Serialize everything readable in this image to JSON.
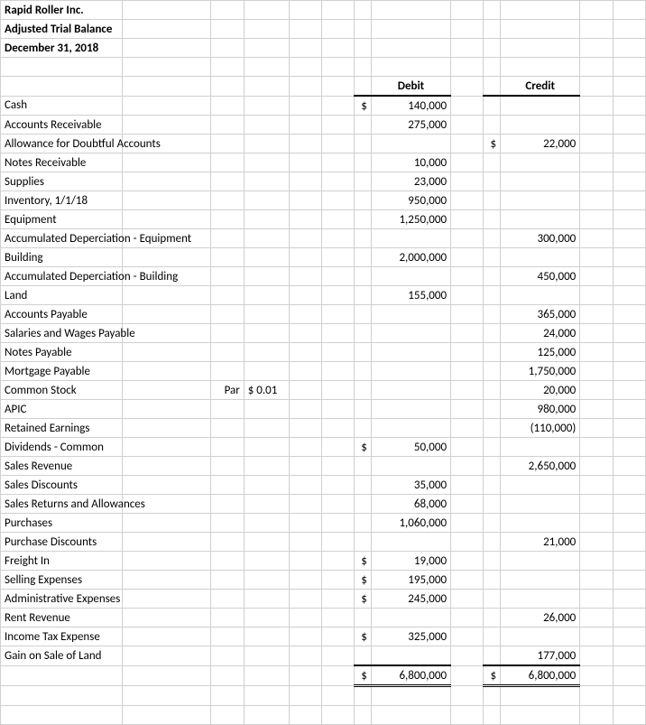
{
  "header": {
    "company": "Rapid Roller Inc.",
    "title": "Adjusted Trial Balance",
    "date": "December 31,  2018"
  },
  "columns": {
    "debit": "Debit",
    "credit": "Credit"
  },
  "par_label": "Par",
  "par_value": "$   0.01",
  "rows": [
    {
      "label": "Cash",
      "debit_sym": "$",
      "debit": "140,000",
      "credit_sym": "",
      "credit": ""
    },
    {
      "label": "Accounts Receivable",
      "debit_sym": "",
      "debit": "275,000",
      "credit_sym": "",
      "credit": ""
    },
    {
      "label": "Allowance for Doubtful Accounts",
      "debit_sym": "",
      "debit": "",
      "credit_sym": "$",
      "credit": "22,000"
    },
    {
      "label": "Notes Receivable",
      "debit_sym": "",
      "debit": "10,000",
      "credit_sym": "",
      "credit": ""
    },
    {
      "label": "Supplies",
      "debit_sym": "",
      "debit": "23,000",
      "credit_sym": "",
      "credit": ""
    },
    {
      "label": "Inventory, 1/1/18",
      "debit_sym": "",
      "debit": "950,000",
      "credit_sym": "",
      "credit": ""
    },
    {
      "label": "Equipment",
      "debit_sym": "",
      "debit": "1,250,000",
      "credit_sym": "",
      "credit": ""
    },
    {
      "label": "Accumulated Deperciation - Equipment",
      "debit_sym": "",
      "debit": "",
      "credit_sym": "",
      "credit": "300,000"
    },
    {
      "label": "Building",
      "debit_sym": "",
      "debit": "2,000,000",
      "credit_sym": "",
      "credit": ""
    },
    {
      "label": "Accumulated Deperciation - Building",
      "debit_sym": "",
      "debit": "",
      "credit_sym": "",
      "credit": "450,000"
    },
    {
      "label": "Land",
      "debit_sym": "",
      "debit": "155,000",
      "credit_sym": "",
      "credit": ""
    },
    {
      "label": "Accounts Payable",
      "debit_sym": "",
      "debit": "",
      "credit_sym": "",
      "credit": "365,000"
    },
    {
      "label": "Salaries and Wages Payable",
      "debit_sym": "",
      "debit": "",
      "credit_sym": "",
      "credit": "24,000"
    },
    {
      "label": "Notes Payable",
      "debit_sym": "",
      "debit": "",
      "credit_sym": "",
      "credit": "125,000"
    },
    {
      "label": "Mortgage Payable",
      "debit_sym": "",
      "debit": "",
      "credit_sym": "",
      "credit": "1,750,000"
    },
    {
      "label": "Common Stock",
      "debit_sym": "",
      "debit": "",
      "credit_sym": "",
      "credit": "20,000"
    },
    {
      "label": "APIC",
      "debit_sym": "",
      "debit": "",
      "credit_sym": "",
      "credit": "980,000"
    },
    {
      "label": "Retained Earnings",
      "debit_sym": "",
      "debit": "",
      "credit_sym": "",
      "credit": "(110,000)"
    },
    {
      "label": "Dividends - Common",
      "debit_sym": "$",
      "debit": "50,000",
      "credit_sym": "",
      "credit": ""
    },
    {
      "label": "Sales Revenue",
      "debit_sym": "",
      "debit": "",
      "credit_sym": "",
      "credit": "2,650,000"
    },
    {
      "label": "Sales Discounts",
      "debit_sym": "",
      "debit": "35,000",
      "credit_sym": "",
      "credit": ""
    },
    {
      "label": "Sales Returns and Allowances",
      "debit_sym": "",
      "debit": "68,000",
      "credit_sym": "",
      "credit": ""
    },
    {
      "label": "Purchases",
      "debit_sym": "",
      "debit": "1,060,000",
      "credit_sym": "",
      "credit": ""
    },
    {
      "label": "Purchase Discounts",
      "debit_sym": "",
      "debit": "",
      "credit_sym": "",
      "credit": "21,000"
    },
    {
      "label": "Freight In",
      "debit_sym": "$",
      "debit": "19,000",
      "credit_sym": "",
      "credit": ""
    },
    {
      "label": "Selling Expenses",
      "debit_sym": "$",
      "debit": "195,000",
      "credit_sym": "",
      "credit": ""
    },
    {
      "label": "Administrative Expenses",
      "debit_sym": "$",
      "debit": "245,000",
      "credit_sym": "",
      "credit": ""
    },
    {
      "label": "Rent Revenue",
      "debit_sym": "",
      "debit": "",
      "credit_sym": "",
      "credit": "26,000"
    },
    {
      "label": "Income Tax Expense",
      "debit_sym": "$",
      "debit": "325,000",
      "credit_sym": "",
      "credit": ""
    },
    {
      "label": "Gain on Sale of Land",
      "debit_sym": "",
      "debit": "",
      "credit_sym": "",
      "credit": "177,000"
    }
  ],
  "totals": {
    "debit_sym": "$",
    "debit": "6,800,000",
    "credit_sym": "$",
    "credit": "6,800,000"
  }
}
